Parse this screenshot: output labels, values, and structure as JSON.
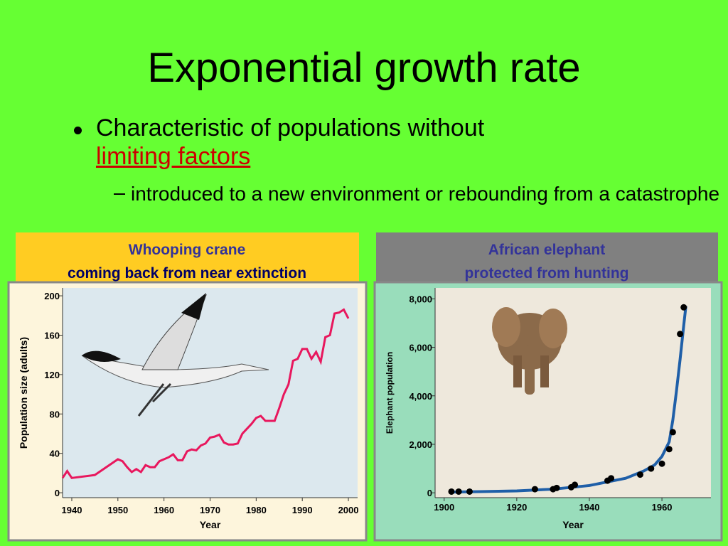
{
  "slide": {
    "title": "Exponential growth rate",
    "bullets": [
      {
        "text": "Characteristic of populations without",
        "link": "limiting factors"
      },
      {
        "text": "introduced to a new environment or rebounding from a catastrophe"
      }
    ]
  },
  "chart_data": [
    {
      "type": "line",
      "title": "Whooping crane",
      "subtitle": "coming back from near extinction",
      "x_label": "Year",
      "y_label": "Population size (adults)",
      "x": [
        1938,
        1939,
        1940,
        1945,
        1950,
        1951,
        1952,
        1953,
        1954,
        1955,
        1956,
        1957,
        1958,
        1959,
        1961,
        1962,
        1963,
        1964,
        1965,
        1966,
        1967,
        1968,
        1969,
        1970,
        1971,
        1972,
        1973,
        1974,
        1975,
        1976,
        1977,
        1978,
        1979,
        1980,
        1981,
        1982,
        1983,
        1984,
        1985,
        1986,
        1987,
        1988,
        1989,
        1990,
        1991,
        1992,
        1993,
        1994,
        1995,
        1996,
        1997,
        1998,
        1999,
        2000
      ],
      "values": [
        15,
        22,
        15,
        18,
        34,
        32,
        26,
        21,
        24,
        21,
        28,
        26,
        26,
        32,
        36,
        39,
        33,
        33,
        42,
        44,
        43,
        48,
        50,
        56,
        57,
        59,
        51,
        49,
        49,
        50,
        60,
        65,
        70,
        76,
        78,
        73,
        73,
        73,
        86,
        100,
        110,
        134,
        136,
        146,
        146,
        136,
        143,
        133,
        158,
        160,
        182,
        183,
        186,
        177
      ],
      "color": "#e8175d",
      "xlim": [
        1938,
        2002
      ],
      "xticks": [
        1940,
        1950,
        1960,
        1970,
        1980,
        1990,
        2000
      ],
      "ylim": [
        -5,
        208
      ],
      "yticks": [
        0,
        40,
        80,
        120,
        160,
        200
      ]
    },
    {
      "type": "scatter",
      "title": "African elephant",
      "subtitle": "protected from hunting",
      "x_label": "Year",
      "y_label": "Elephant population",
      "series": [
        {
          "color": "#000000",
          "mark": "dot",
          "x": [
            1902,
            1904,
            1907,
            1925,
            1930,
            1931,
            1935,
            1936,
            1945,
            1946,
            1954,
            1957,
            1960,
            1962,
            1963,
            1965,
            1966
          ],
          "values": [
            50,
            50,
            50,
            150,
            150,
            200,
            230,
            330,
            500,
            600,
            750,
            1000,
            1200,
            1800,
            2500,
            6550,
            7650
          ]
        },
        {
          "color": "#1f5fa8",
          "mark": "line",
          "x": [
            1902,
            1910,
            1920,
            1930,
            1940,
            1950,
            1955,
            1958,
            1960,
            1962,
            1963,
            1964,
            1965,
            1966,
            1966.6
          ],
          "values": [
            30,
            50,
            80,
            150,
            300,
            600,
            900,
            1150,
            1500,
            2100,
            3000,
            4200,
            5500,
            6900,
            7700
          ]
        }
      ],
      "xlim": [
        1897.5,
        1973.5
      ],
      "xticks": [
        1900,
        1920,
        1940,
        1960
      ],
      "ylim": [
        -200,
        8450
      ],
      "yticks": [
        0,
        {
          "value": 2000,
          "label": "2,000"
        },
        {
          "value": 4000,
          "label": "4,000"
        },
        {
          "value": 6000,
          "label": "6,000"
        },
        {
          "value": 8000,
          "label": "8,000"
        }
      ]
    }
  ]
}
